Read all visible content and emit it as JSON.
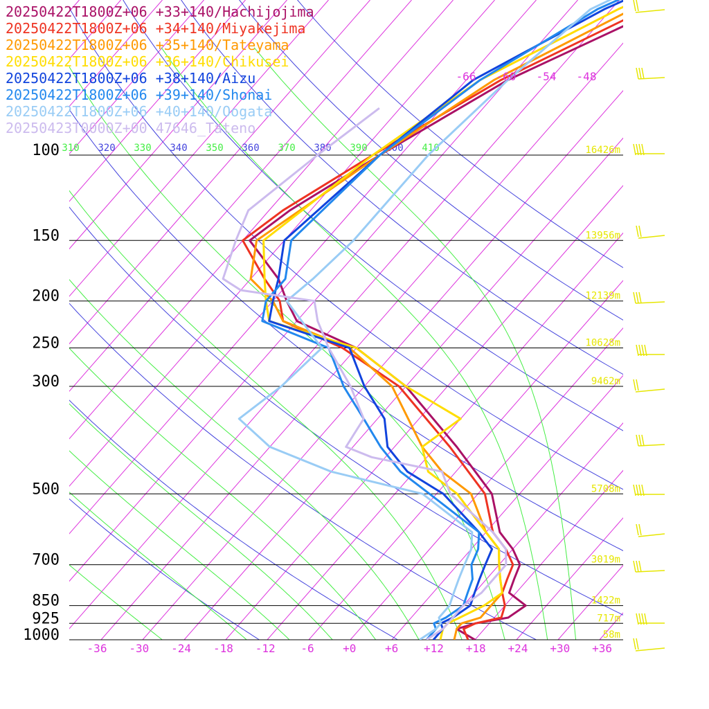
{
  "chart_data": {
    "type": "line",
    "title": "",
    "legend": [
      {
        "label": "20250422T1800Z+06 +33+140/Hachijojima",
        "color": "#aa1166"
      },
      {
        "label": "20250422T1800Z+06 +34+140/Miyakejima",
        "color": "#ee3322"
      },
      {
        "label": "20250422T1800Z+06 +35+140/Tateyama",
        "color": "#ff9900"
      },
      {
        "label": "20250422T1800Z+06 +36+140/Chikusei",
        "color": "#ffdd00"
      },
      {
        "label": "20250422T1800Z+06 +38+140/Aizu",
        "color": "#1144dd"
      },
      {
        "label": "20250422T1800Z+06 +39+140/Shonai",
        "color": "#2288ee"
      },
      {
        "label": "20250422T1800Z+06 +40+140/Oogata",
        "color": "#99ccf5"
      },
      {
        "label": "20250423T0000Z+00 47646_Tateno",
        "color": "#ccbbee"
      }
    ],
    "pressure_levels": [
      {
        "p": "100",
        "h": "16426m"
      },
      {
        "p": "150",
        "h": "13956m"
      },
      {
        "p": "200",
        "h": "12139m"
      },
      {
        "p": "250",
        "h": "10628m"
      },
      {
        "p": "300",
        "h": "9462m"
      },
      {
        "p": "500",
        "h": "5708m"
      },
      {
        "p": "700",
        "h": "3019m"
      },
      {
        "p": "850",
        "h": "1422m"
      },
      {
        "p": "925",
        "h": "717m"
      },
      {
        "p": "1000",
        "h": "58m"
      }
    ],
    "x_ticks": [
      "-36",
      "-30",
      "-24",
      "-18",
      "-12",
      "-6",
      "+0",
      "+6",
      "+12",
      "+18",
      "+24",
      "+30",
      "+36"
    ],
    "upper_ticks": [
      "-66",
      "-60",
      "-54",
      "-48"
    ],
    "theta_labels": [
      "310",
      "320",
      "330",
      "340",
      "350",
      "360",
      "370",
      "380",
      "390",
      "400",
      "410"
    ],
    "colors": {
      "isotherm": "#dd33dd",
      "dry_adiabat": "#4444dd",
      "moist_adiabat": "#44ee44",
      "wind_barb": "#e6e600",
      "height_label": "#e6e600"
    },
    "series": [
      {
        "name": "20250422T1800Z+06 +33+140/Hachijojima",
        "color": "#aa1166",
        "points": [
          [
            1000,
            18
          ],
          [
            950,
            14
          ],
          [
            925,
            16
          ],
          [
            900,
            20
          ],
          [
            850,
            21
          ],
          [
            800,
            17
          ],
          [
            750,
            16
          ],
          [
            700,
            15
          ],
          [
            650,
            12
          ],
          [
            600,
            8
          ],
          [
            500,
            2
          ],
          [
            400,
            -9
          ],
          [
            300,
            -24
          ],
          [
            250,
            -36
          ],
          [
            220,
            -48
          ],
          [
            200,
            -52
          ],
          [
            180,
            -56
          ],
          [
            150,
            -65
          ],
          [
            130,
            -63
          ],
          [
            100,
            -57
          ],
          [
            70,
            -48
          ],
          [
            50,
            -35
          ],
          [
            30,
            -17
          ]
        ]
      },
      {
        "name": "20250422T1800Z+06 +34+140/Miyakejima",
        "color": "#ee3322",
        "points": [
          [
            1000,
            17
          ],
          [
            950,
            15
          ],
          [
            925,
            16
          ],
          [
            900,
            19
          ],
          [
            850,
            18
          ],
          [
            800,
            16
          ],
          [
            750,
            15
          ],
          [
            700,
            14
          ],
          [
            650,
            11
          ],
          [
            600,
            7
          ],
          [
            500,
            1
          ],
          [
            400,
            -10
          ],
          [
            300,
            -25
          ],
          [
            250,
            -38
          ],
          [
            220,
            -50
          ],
          [
            200,
            -53
          ],
          [
            180,
            -58
          ],
          [
            150,
            -66
          ],
          [
            130,
            -64
          ],
          [
            100,
            -58
          ],
          [
            70,
            -49
          ],
          [
            50,
            -37
          ],
          [
            30,
            -18
          ]
        ]
      },
      {
        "name": "20250422T1800Z+06 +35+140/Tateyama",
        "color": "#ff9900",
        "points": [
          [
            1000,
            15
          ],
          [
            950,
            14
          ],
          [
            925,
            14
          ],
          [
            900,
            16
          ],
          [
            850,
            16
          ],
          [
            800,
            16
          ],
          [
            750,
            14
          ],
          [
            700,
            12
          ],
          [
            650,
            10
          ],
          [
            600,
            6
          ],
          [
            500,
            -1
          ],
          [
            450,
            -8
          ],
          [
            400,
            -14
          ],
          [
            300,
            -26
          ],
          [
            250,
            -37
          ],
          [
            220,
            -50
          ],
          [
            200,
            -54
          ],
          [
            180,
            -60
          ],
          [
            150,
            -64
          ],
          [
            100,
            -57
          ],
          [
            70,
            -50
          ],
          [
            50,
            -39
          ],
          [
            30,
            -19
          ]
        ]
      },
      {
        "name": "20250422T1800Z+06 +36+140/Chikusei",
        "color": "#ffdd00",
        "points": [
          [
            1000,
            13
          ],
          [
            950,
            12
          ],
          [
            925,
            12
          ],
          [
            900,
            13
          ],
          [
            850,
            15
          ],
          [
            800,
            16
          ],
          [
            750,
            14
          ],
          [
            700,
            12
          ],
          [
            650,
            10
          ],
          [
            600,
            6
          ],
          [
            500,
            -3
          ],
          [
            450,
            -10
          ],
          [
            400,
            -14
          ],
          [
            350,
            -12
          ],
          [
            300,
            -24
          ],
          [
            250,
            -36
          ],
          [
            220,
            -52
          ],
          [
            200,
            -55
          ],
          [
            180,
            -58
          ],
          [
            150,
            -63
          ],
          [
            100,
            -58
          ],
          [
            70,
            -52
          ],
          [
            50,
            -41
          ],
          [
            30,
            -20
          ]
        ]
      },
      {
        "name": "20250422T1800Z+06 +38+140/Aizu",
        "color": "#1144dd",
        "points": [
          [
            1000,
            12
          ],
          [
            950,
            12
          ],
          [
            925,
            11
          ],
          [
            900,
            12
          ],
          [
            850,
            13
          ],
          [
            800,
            12
          ],
          [
            750,
            11
          ],
          [
            700,
            10
          ],
          [
            650,
            9
          ],
          [
            600,
            5
          ],
          [
            500,
            -5
          ],
          [
            450,
            -13
          ],
          [
            400,
            -19
          ],
          [
            350,
            -23
          ],
          [
            300,
            -30
          ],
          [
            250,
            -37
          ],
          [
            220,
            -52
          ],
          [
            200,
            -54
          ],
          [
            180,
            -56
          ],
          [
            150,
            -60
          ],
          [
            100,
            -57
          ],
          [
            70,
            -53
          ],
          [
            50,
            -43
          ],
          [
            30,
            -22
          ]
        ]
      },
      {
        "name": "20250422T1800Z+06 +39+140/Shonai",
        "color": "#2288ee",
        "points": [
          [
            1000,
            11
          ],
          [
            950,
            11
          ],
          [
            925,
            10
          ],
          [
            900,
            11
          ],
          [
            850,
            12
          ],
          [
            800,
            11
          ],
          [
            750,
            10
          ],
          [
            700,
            8
          ],
          [
            650,
            7
          ],
          [
            600,
            5
          ],
          [
            500,
            -7
          ],
          [
            450,
            -14
          ],
          [
            400,
            -20
          ],
          [
            350,
            -26
          ],
          [
            300,
            -33
          ],
          [
            250,
            -40
          ],
          [
            220,
            -53
          ],
          [
            200,
            -55
          ],
          [
            180,
            -55
          ],
          [
            150,
            -59
          ],
          [
            100,
            -57
          ],
          [
            70,
            -52
          ],
          [
            50,
            -44
          ],
          [
            30,
            -23
          ]
        ]
      },
      {
        "name": "20250422T1800Z+06 +40+140/Oogata",
        "color": "#99ccf5",
        "points": [
          [
            1000,
            10
          ],
          [
            950,
            11
          ],
          [
            925,
            11
          ],
          [
            900,
            10
          ],
          [
            850,
            10
          ],
          [
            800,
            9
          ],
          [
            750,
            8
          ],
          [
            700,
            7
          ],
          [
            650,
            6
          ],
          [
            600,
            4
          ],
          [
            500,
            -8
          ],
          [
            450,
            -24
          ],
          [
            400,
            -36
          ],
          [
            350,
            -44
          ],
          [
            300,
            -42
          ],
          [
            250,
            -41
          ],
          [
            200,
            -52
          ],
          [
            180,
            -51
          ],
          [
            150,
            -50
          ],
          [
            100,
            -50
          ],
          [
            70,
            -48
          ],
          [
            50,
            -45
          ],
          [
            30,
            -26
          ]
        ]
      },
      {
        "name": "20250423T0000Z+00 47646_Tateno",
        "color": "#ccbbee",
        "points": [
          [
            1000,
            11
          ],
          [
            950,
            12
          ],
          [
            925,
            12
          ],
          [
            900,
            12
          ],
          [
            850,
            12
          ],
          [
            800,
            13
          ],
          [
            750,
            13
          ],
          [
            700,
            13
          ],
          [
            650,
            11
          ],
          [
            600,
            7
          ],
          [
            500,
            -4
          ],
          [
            450,
            -8
          ],
          [
            420,
            -20
          ],
          [
            400,
            -25
          ],
          [
            350,
            -26
          ],
          [
            300,
            -32
          ],
          [
            250,
            -40
          ],
          [
            220,
            -45
          ],
          [
            200,
            -48
          ],
          [
            190,
            -60
          ],
          [
            180,
            -64
          ],
          [
            150,
            -67
          ],
          [
            130,
            -69
          ],
          [
            100,
            -66
          ],
          [
            80,
            -63
          ]
        ]
      }
    ]
  }
}
